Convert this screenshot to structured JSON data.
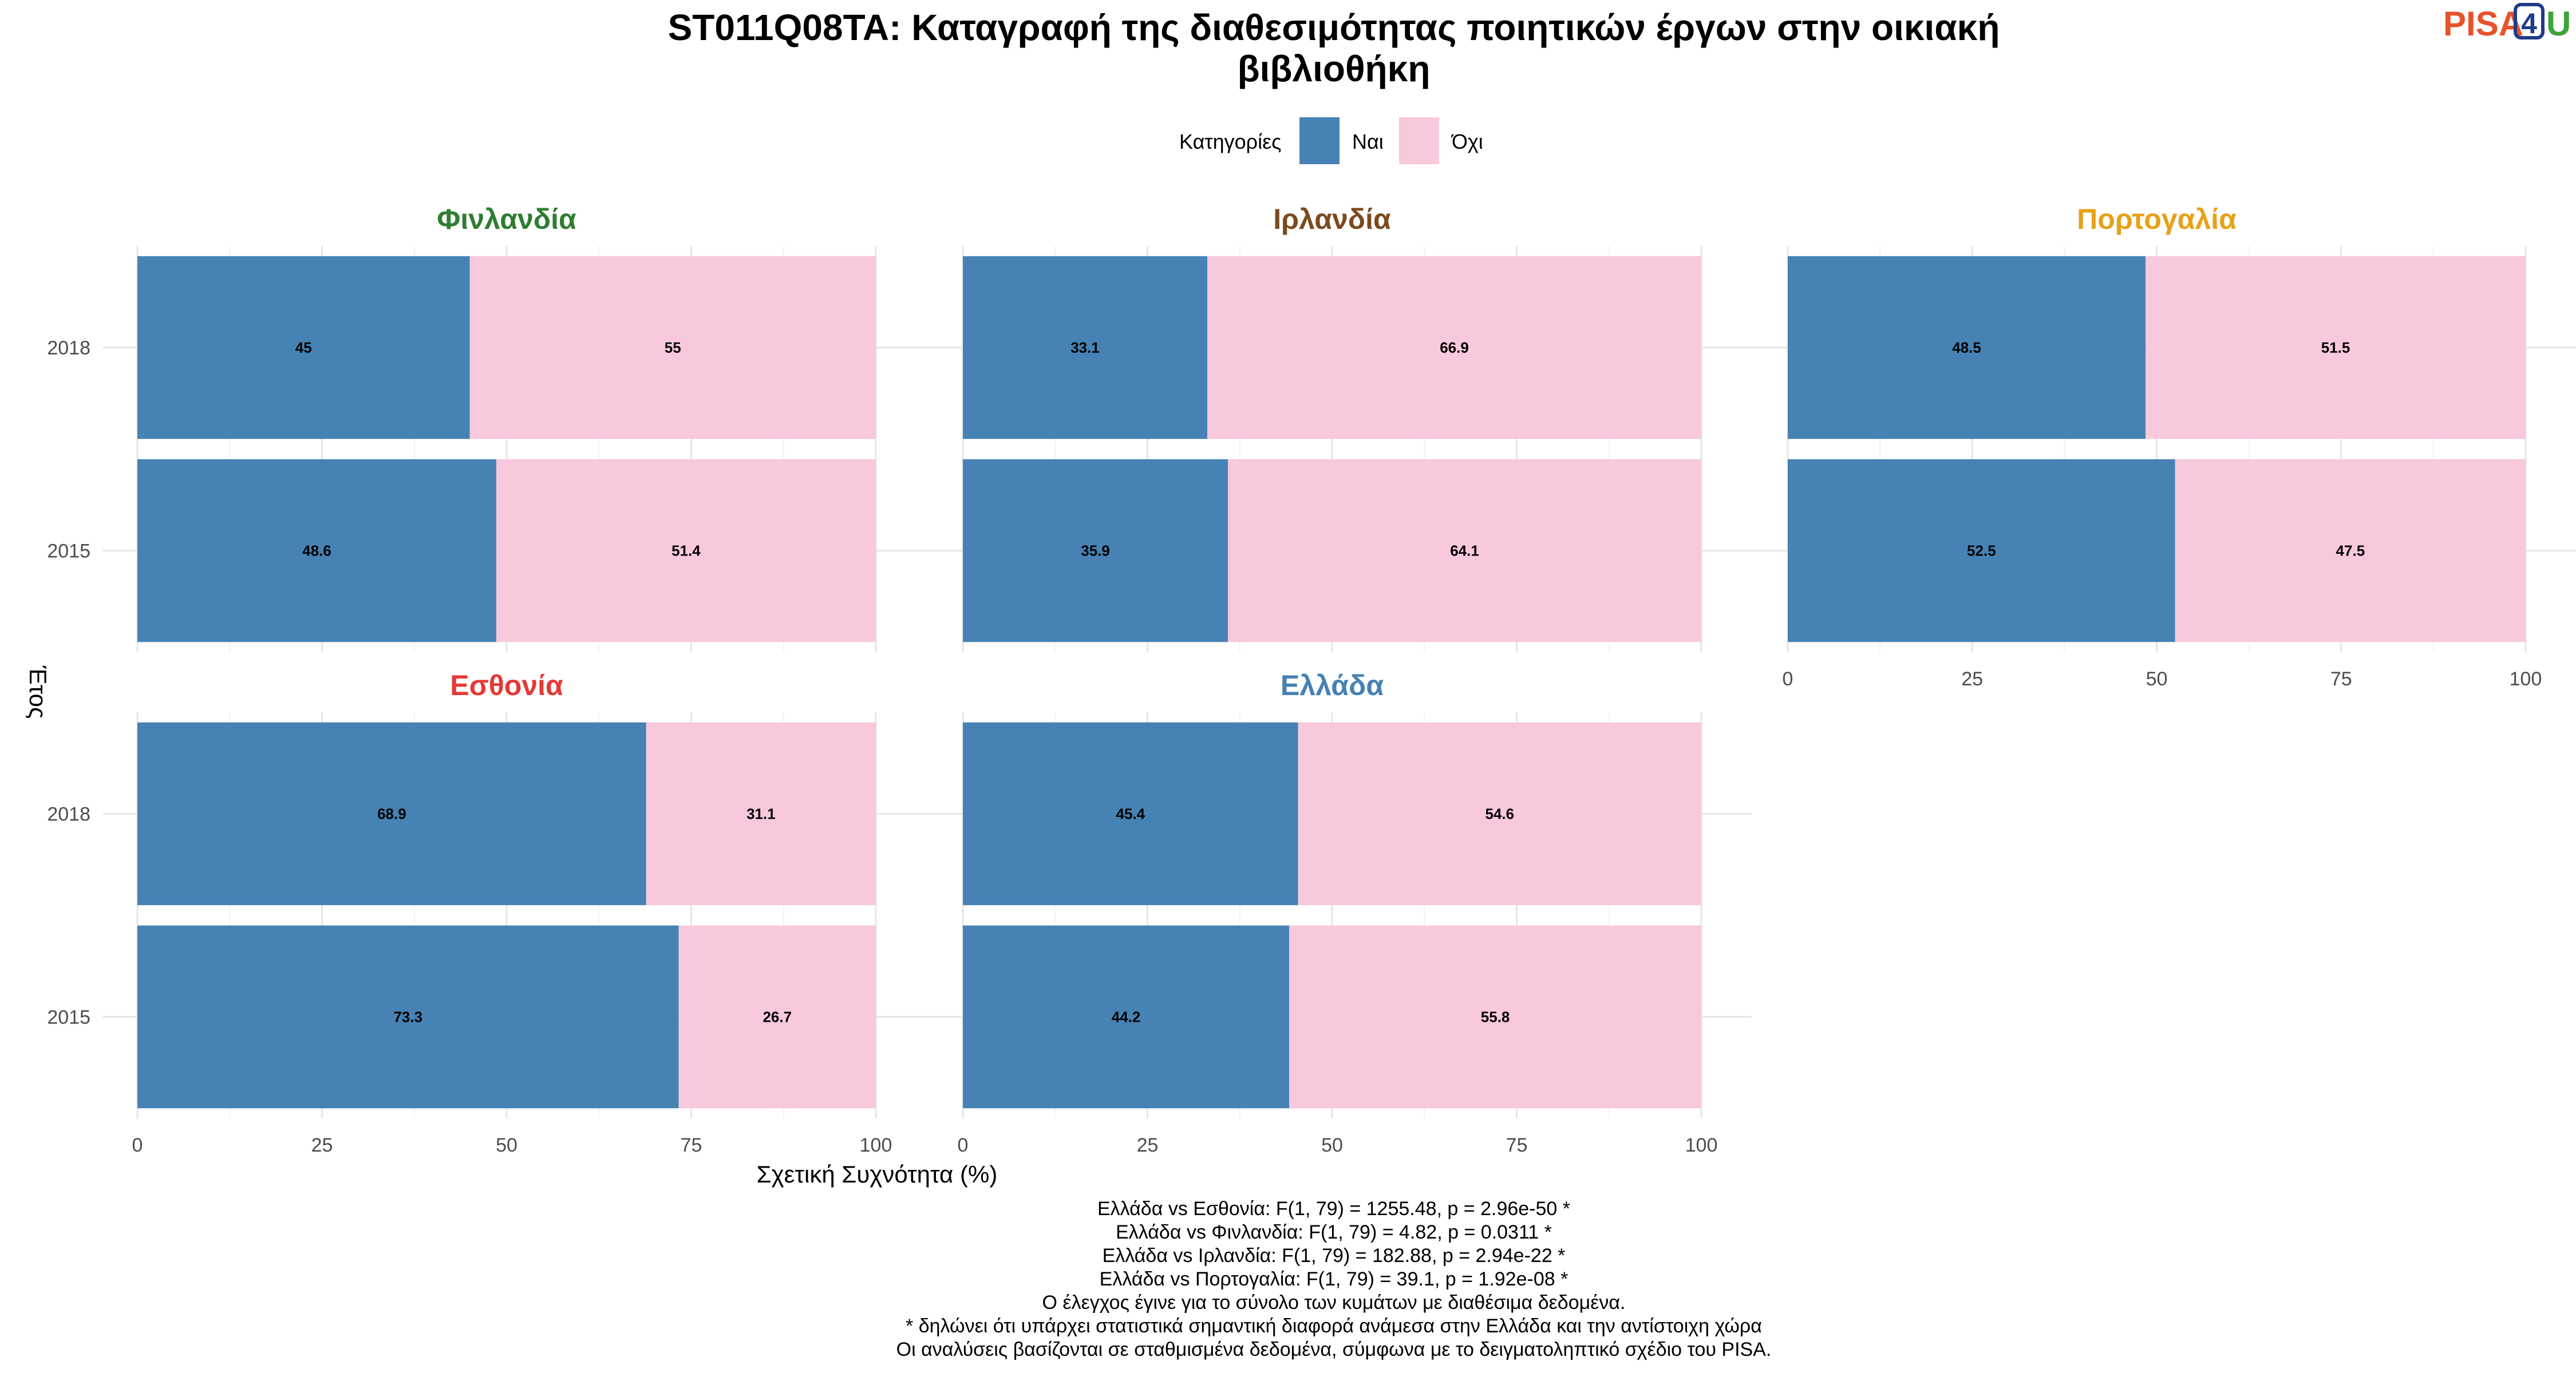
{
  "chart_data": {
    "type": "bar",
    "orientation": "horizontal",
    "stacked": true,
    "title_lines": [
      "ST011Q08TA: Καταγραφή της διαθεσιμότητας ποιητικών έργων στην οικιακή",
      "βιβλιοθήκη"
    ],
    "xlabel": "Σχετική Συχνότητα (%)",
    "ylabel": "Έτος",
    "xlim": [
      0,
      100
    ],
    "xticks": [
      0,
      25,
      50,
      75,
      100
    ],
    "legend": {
      "title": "Κατηγορίες",
      "position": "top",
      "entries": [
        {
          "name": "Ναι",
          "color": "#4682b4"
        },
        {
          "name": "Όχι",
          "color": "#f8c8dc"
        }
      ]
    },
    "grid": true,
    "facets": [
      {
        "name": "Φινλανδία",
        "color": "#2e7d32",
        "categories": [
          "2018",
          "2015"
        ],
        "series": [
          {
            "name": "Ναι",
            "values": [
              45,
              48.6
            ]
          },
          {
            "name": "Όχι",
            "values": [
              55,
              51.4
            ]
          }
        ]
      },
      {
        "name": "Ιρλανδία",
        "color": "#7b4a1e",
        "categories": [
          "2018",
          "2015"
        ],
        "series": [
          {
            "name": "Ναι",
            "values": [
              33.1,
              35.9
            ]
          },
          {
            "name": "Όχι",
            "values": [
              66.9,
              64.1
            ]
          }
        ]
      },
      {
        "name": "Πορτογαλία",
        "color": "#e6a117",
        "categories": [
          "2018",
          "2015"
        ],
        "series": [
          {
            "name": "Ναι",
            "values": [
              48.5,
              52.5
            ]
          },
          {
            "name": "Όχι",
            "values": [
              51.5,
              47.5
            ]
          }
        ]
      },
      {
        "name": "Εσθονία",
        "color": "#e53935",
        "categories": [
          "2018",
          "2015"
        ],
        "series": [
          {
            "name": "Ναι",
            "values": [
              68.9,
              73.3
            ]
          },
          {
            "name": "Όχι",
            "values": [
              31.1,
              26.7
            ]
          }
        ]
      },
      {
        "name": "Ελλάδα",
        "color": "#4682b4",
        "categories": [
          "2018",
          "2015"
        ],
        "series": [
          {
            "name": "Ναι",
            "values": [
              45.4,
              44.2
            ]
          },
          {
            "name": "Όχι",
            "values": [
              54.6,
              55.8
            ]
          }
        ]
      }
    ],
    "caption_lines": [
      "Ελλάδα vs Εσθονία: F(1, 79) = 1255.48, p = 2.96e-50 *",
      "Ελλάδα vs Φινλανδία: F(1, 79) = 4.82, p = 0.0311 *",
      "Ελλάδα vs Ιρλανδία: F(1, 79) = 182.88, p = 2.94e-22 *",
      "Ελλάδα vs Πορτογαλία: F(1, 79) = 39.1, p = 1.92e-08 *",
      "Ο έλεγχος έγινε για το σύνολο των κυμάτων με διαθέσιμα δεδομένα.",
      "* δηλώνει ότι υπάρχει στατιστικά σημαντική διαφορά ανάμεσα στην Ελλάδα και την αντίστοιχη χώρα",
      "Οι αναλύσεις βασίζονται σε σταθμισμένα δεδομένα, σύμφωνα με το δειγματοληπτικό σχέδιο του PISA."
    ]
  },
  "logo": {
    "pisa": "PISA",
    "four": "4",
    "u": "U",
    "pisa_color": "#e8512a",
    "four_color": "#1f3c88",
    "u_color": "#3da33a"
  }
}
